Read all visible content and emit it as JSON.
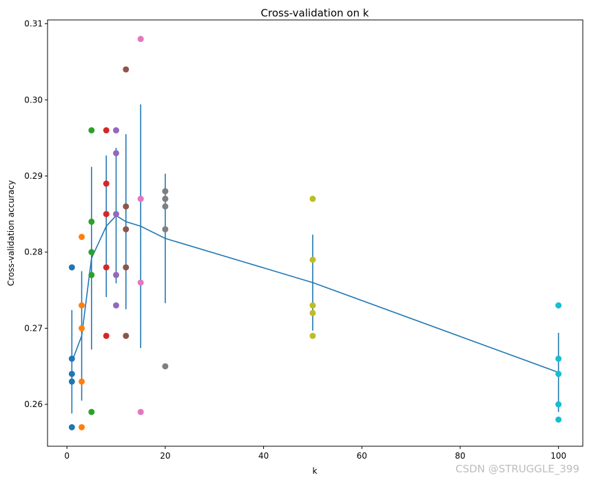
{
  "chart_data": {
    "type": "scatter",
    "title": "Cross-validation on k",
    "xlabel": "k",
    "ylabel": "Cross-validation accuracy",
    "xlim": [
      -3.95,
      104.95
    ],
    "ylim": [
      0.2545,
      0.3105
    ],
    "xticks": [
      0,
      20,
      40,
      60,
      80,
      100
    ],
    "xtick_labels": [
      "0",
      "20",
      "40",
      "60",
      "80",
      "100"
    ],
    "yticks": [
      0.26,
      0.27,
      0.28,
      0.29,
      0.3,
      0.31
    ],
    "ytick_labels": [
      "0.26",
      "0.27",
      "0.28",
      "0.29",
      "0.30",
      "0.31"
    ],
    "grid": false,
    "scatter": [
      {
        "k": 1,
        "color": "#1f77b4",
        "values": [
          0.263,
          0.257,
          0.264,
          0.278,
          0.266
        ]
      },
      {
        "k": 3,
        "color": "#ff7f0e",
        "values": [
          0.257,
          0.263,
          0.273,
          0.282,
          0.27
        ]
      },
      {
        "k": 5,
        "color": "#2ca02c",
        "values": [
          0.28,
          0.277,
          0.296,
          0.284,
          0.259
        ]
      },
      {
        "k": 8,
        "color": "#d62728",
        "values": [
          0.278,
          0.269,
          0.289,
          0.285,
          0.296
        ]
      },
      {
        "k": 10,
        "color": "#9467bd",
        "values": [
          0.277,
          0.273,
          0.296,
          0.285,
          0.293
        ]
      },
      {
        "k": 12,
        "color": "#8c564b",
        "values": [
          0.278,
          0.269,
          0.283,
          0.286,
          0.304
        ]
      },
      {
        "k": 15,
        "color": "#e377c2",
        "values": [
          0.276,
          0.259,
          0.308,
          0.287,
          0.287
        ]
      },
      {
        "k": 20,
        "color": "#7f7f7f",
        "values": [
          0.265,
          0.283,
          0.286,
          0.288,
          0.287
        ]
      },
      {
        "k": 50,
        "color": "#bcbd22",
        "values": [
          0.269,
          0.273,
          0.272,
          0.279,
          0.287
        ]
      },
      {
        "k": 100,
        "color": "#17becf",
        "values": [
          0.258,
          0.264,
          0.26,
          0.273,
          0.266
        ]
      }
    ],
    "errorbar": {
      "color": "#1f77b4",
      "x": [
        1,
        3,
        5,
        8,
        10,
        12,
        15,
        20,
        50,
        100
      ],
      "mean": [
        0.2656,
        0.269,
        0.2792,
        0.2834,
        0.2848,
        0.284,
        0.2834,
        0.2818,
        0.276,
        0.2642
      ],
      "std": [
        0.0068,
        0.0085,
        0.012,
        0.0093,
        0.0089,
        0.0115,
        0.016,
        0.0085,
        0.0063,
        0.0052
      ]
    }
  },
  "watermark": "CSDN @STRUGGLE_399"
}
